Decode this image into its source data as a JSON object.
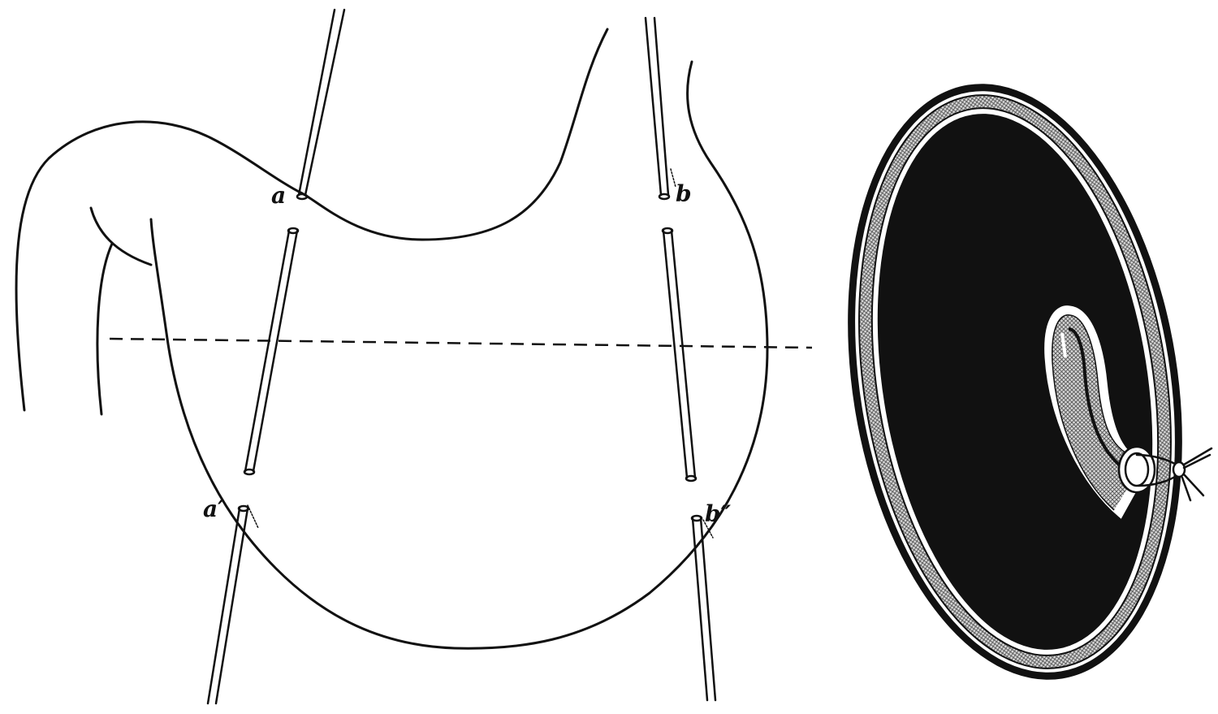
{
  "figure": {
    "labels": {
      "a": "a",
      "b": "b",
      "a_prime": "a′",
      "b_prime": "b″"
    }
  },
  "colors": {
    "ink": "#111111",
    "paper": "#ffffff",
    "hatch": "#5a5a5a"
  }
}
